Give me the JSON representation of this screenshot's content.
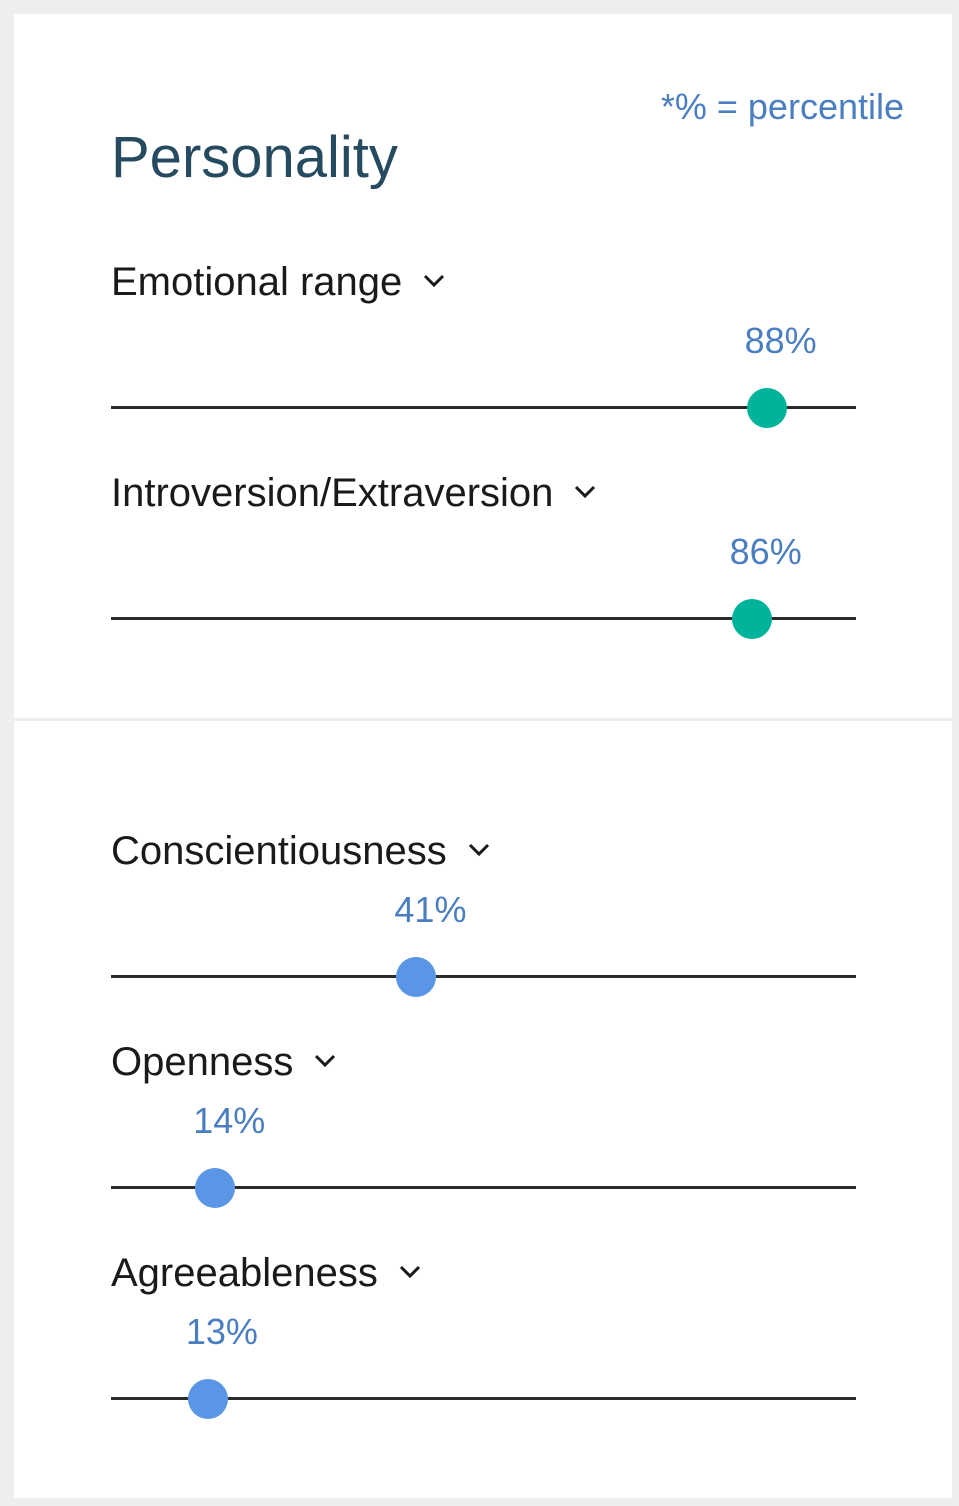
{
  "note": "*% = percentile",
  "title": "Personality",
  "colors": {
    "title": "#264a60",
    "value_text": "#4a7ec0",
    "thumb_group_1": "#00b39a",
    "thumb_group_2": "#5b96e6",
    "track": "#2a2a2a"
  },
  "groups": [
    {
      "thumb_color": "#00b39a",
      "traits": [
        {
          "label": "Emotional range",
          "value_text": "88%",
          "percentile": 88,
          "icon": "chevron-down-icon"
        },
        {
          "label": "Introversion/Extraversion",
          "value_text": "86%",
          "percentile": 86,
          "icon": "chevron-down-icon"
        }
      ]
    },
    {
      "thumb_color": "#5b96e6",
      "traits": [
        {
          "label": "Conscientiousness",
          "value_text": "41%",
          "percentile": 41,
          "icon": "chevron-down-icon"
        },
        {
          "label": "Openness",
          "value_text": "14%",
          "percentile": 14,
          "icon": "chevron-down-icon"
        },
        {
          "label": "Agreeableness",
          "value_text": "13%",
          "percentile": 13,
          "icon": "chevron-down-icon"
        }
      ]
    }
  ]
}
